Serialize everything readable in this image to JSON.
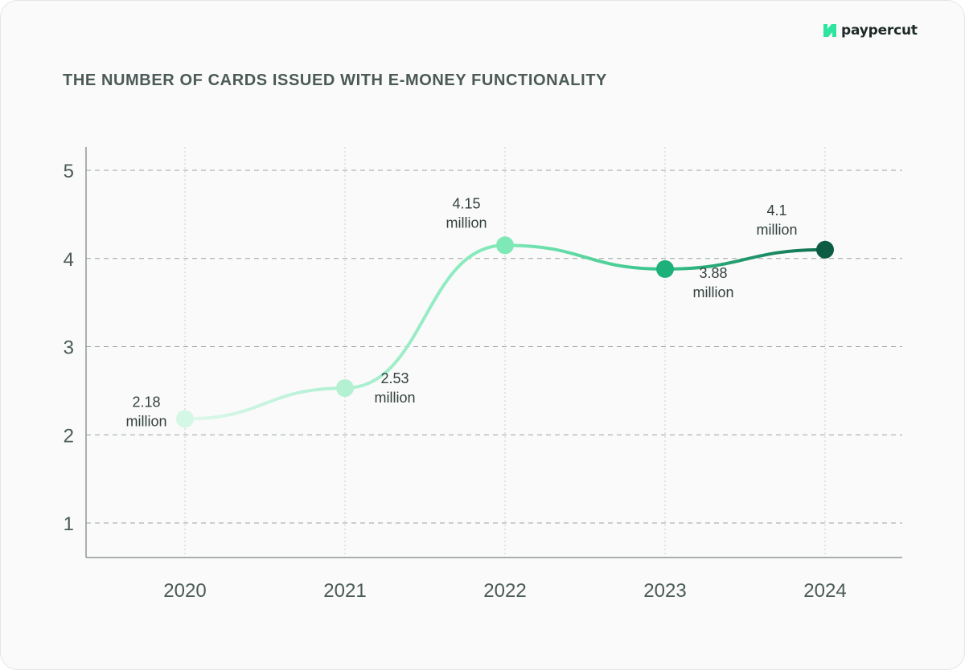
{
  "brand": {
    "name": "paypercut",
    "logo_icon": "paypercut-logo-icon",
    "logo_color": "#2ee5a0"
  },
  "chart_data": {
    "type": "line",
    "title": "THE NUMBER OF CARDS ISSUED WITH E-MONEY FUNCTIONALITY",
    "categories": [
      "2020",
      "2021",
      "2022",
      "2023",
      "2024"
    ],
    "values": [
      2.18,
      2.53,
      4.15,
      3.88,
      4.1
    ],
    "data_labels": [
      [
        "2.18",
        "million"
      ],
      [
        "2.53",
        "million"
      ],
      [
        "4.15",
        "million"
      ],
      [
        "3.88",
        "million"
      ],
      [
        "4.1",
        "million"
      ]
    ],
    "y_ticks": [
      "1",
      "2",
      "3",
      "4",
      "5"
    ],
    "ylim": [
      0.6,
      5.3
    ],
    "grid": true,
    "point_colors": [
      "#d5f7e6",
      "#b3f1d2",
      "#7ee8b7",
      "#1db07a",
      "#0c5c43"
    ]
  }
}
